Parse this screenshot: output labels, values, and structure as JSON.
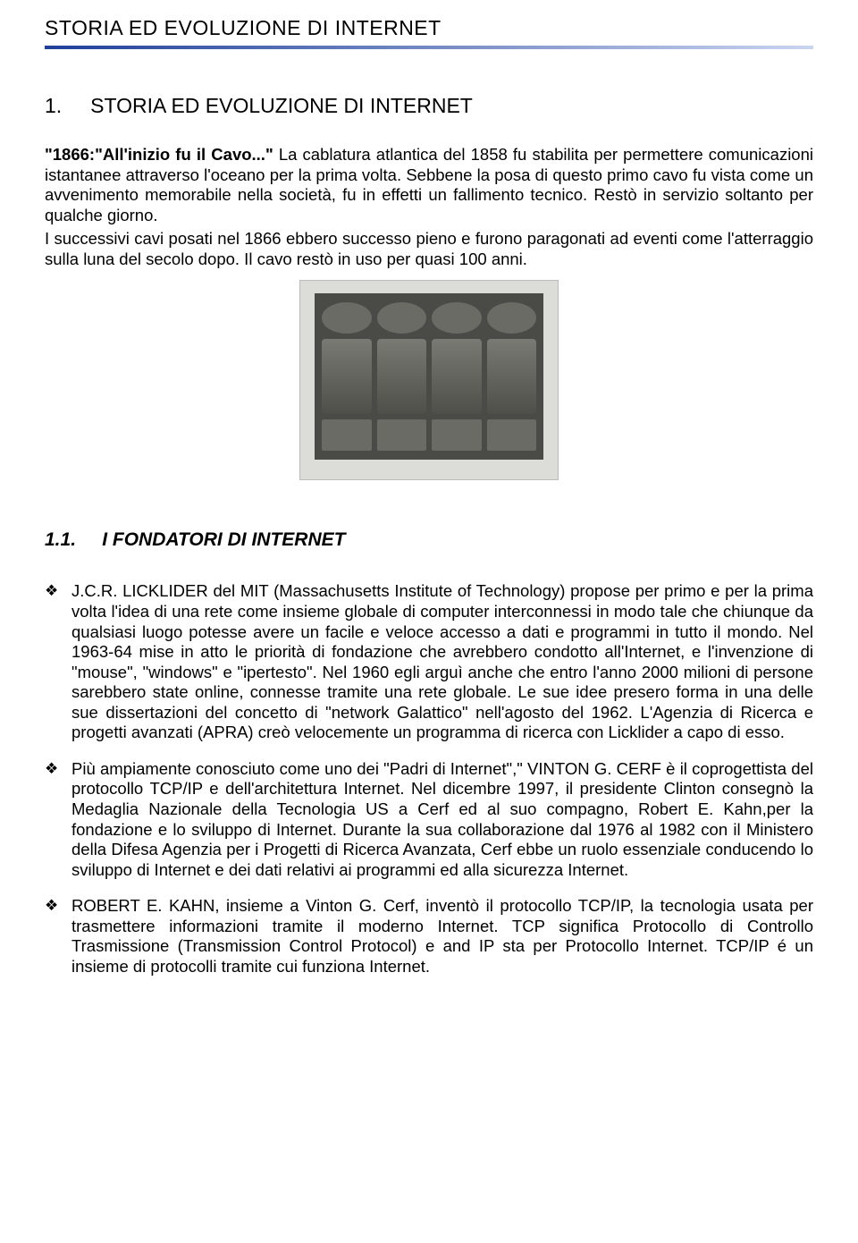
{
  "header": {
    "title": "STORIA ED EVOLUZIONE DI INTERNET"
  },
  "section": {
    "number": "1.",
    "title": "STORIA ED EVOLUZIONE DI INTERNET"
  },
  "intro": {
    "lead_bold": "\"1866:\"All'inizio fu il Cavo...\"",
    "para1_rest": " La cablatura atlantica del 1858 fu stabilita per permettere comunicazioni istantanee attraverso l'oceano per la prima volta. Sebbene la posa di questo primo cavo fu vista come un avvenimento memorabile nella società, fu in effetti un fallimento tecnico. Restò in servizio soltanto per qualche giorno.",
    "para2": "I successivi cavi posati nel 1866 ebbero successo pieno e furono paragonati ad eventi come l'atterraggio sulla luna del secolo dopo. Il cavo restò in uso per quasi 100 anni."
  },
  "subsection": {
    "number": "1.1.",
    "title": "I FONDATORI DI INTERNET"
  },
  "founders": [
    "J.C.R. LICKLIDER del MIT (Massachusetts Institute of Technology) propose per primo e per la prima volta l'idea di una rete come insieme globale di computer interconnessi in modo tale che chiunque da qualsiasi luogo potesse avere un facile e veloce accesso a dati e programmi in tutto il mondo. Nel 1963-64 mise in atto le priorità di fondazione che avrebbero condotto all'Internet, e l'invenzione di \"mouse\", \"windows\" e \"ipertesto\". Nel 1960 egli arguì anche che entro l'anno 2000 milioni di persone sarebbero state online, connesse tramite una rete globale. Le sue idee presero forma in una delle sue dissertazioni del concetto di \"network Galattico\" nell'agosto del 1962. L'Agenzia di Ricerca e progetti avanzati (APRA) creò velocemente un programma di ricerca con Licklider a capo di esso.",
    "Più ampiamente conosciuto come uno dei \"Padri di Internet\",\" VINTON G. CERF è il coprogettista del protocollo TCP/IP e dell'architettura Internet. Nel dicembre 1997, il presidente Clinton consegnò la Medaglia Nazionale della Tecnologia US a Cerf ed al suo compagno, Robert E. Kahn,per la fondazione e lo sviluppo di Internet. Durante la sua collaborazione dal 1976 al 1982 con il Ministero della Difesa Agenzia per i Progetti di Ricerca Avanzata, Cerf ebbe un ruolo essenziale conducendo lo sviluppo di Internet e dei dati relativi ai programmi ed alla sicurezza Internet.",
    "ROBERT E. KAHN, insieme a Vinton G. Cerf, inventò il protocollo TCP/IP, la tecnologia usata per trasmettere informazioni tramite il moderno Internet. TCP significa Protocollo di Controllo Trasmissione (Transmission Control Protocol) e and IP sta per Protocollo Internet. TCP/IP é un insieme di protocolli tramite cui funziona Internet."
  ],
  "bullet_glyph": "❖"
}
